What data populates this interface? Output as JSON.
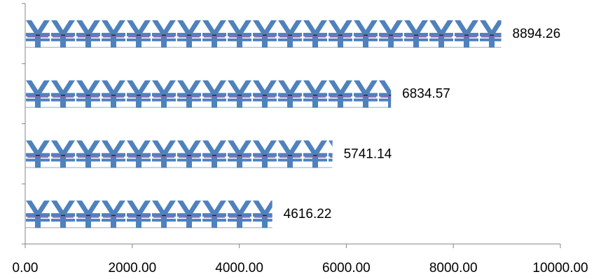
{
  "chart_data": {
    "type": "bar",
    "orientation": "horizontal",
    "categories": [
      "",
      "",
      "",
      ""
    ],
    "values": [
      8894.26,
      6834.57,
      5741.14,
      4616.22
    ],
    "data_labels": [
      "8894.26",
      "6834.57",
      "5741.14",
      "4616.22"
    ],
    "xlim": [
      0,
      10000
    ],
    "x_ticks": [
      "0.00",
      "2000.00",
      "4000.00",
      "6000.00",
      "8000.00",
      "10000.00"
    ],
    "title": "",
    "xlabel": "",
    "ylabel": "",
    "grid": false,
    "legend": "none",
    "bar_fill": "pictograph",
    "bar_symbol": "¥",
    "colors": {
      "symbol": "#4F81BD",
      "stripe_accent": "#9B59A6",
      "axis": "#868686",
      "text": "#000000"
    }
  }
}
